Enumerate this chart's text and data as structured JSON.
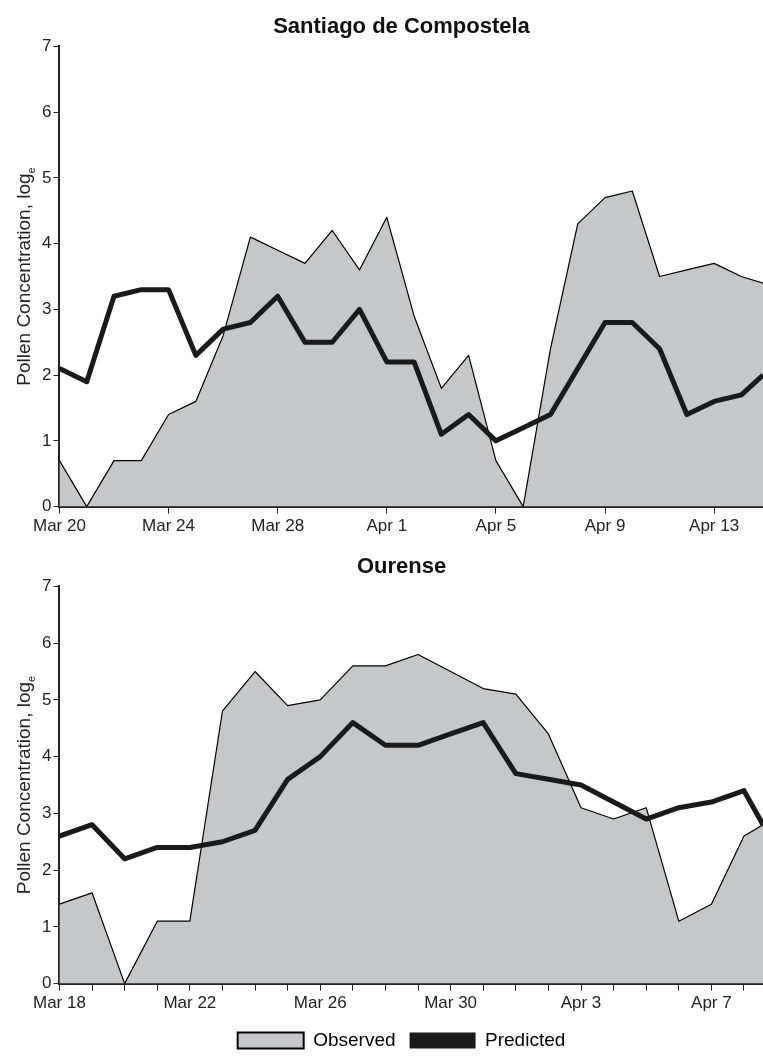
{
  "chart_data": [
    {
      "type": "area",
      "title": "Santiago de Compostela",
      "ylabel": "Pollen Concentration, log$_{e}$",
      "x": [
        "--03-20",
        "--03-21",
        "--03-22",
        "--03-23",
        "--03-24",
        "--03-25",
        "--03-26",
        "--03-27",
        "--03-28",
        "--03-29",
        "--03-30",
        "--03-31",
        "--04-01",
        "--04-02",
        "--04-03",
        "--04-04",
        "--04-05",
        "--04-06",
        "--04-07",
        "--04-08",
        "--04-09",
        "--04-10",
        "--04-11",
        "--04-12",
        "--04-13",
        "--04-14",
        "--04-14T19:00"
      ],
      "xlim": [
        "--03-20",
        "--04-14T19:00"
      ],
      "xticks": [
        {
          "value": "--03-20",
          "label": "Mar 20"
        },
        {
          "value": "--03-24",
          "label": "Mar 24"
        },
        {
          "value": "--03-28",
          "label": "Mar 28"
        },
        {
          "value": "--04-01",
          "label": "Apr 1"
        },
        {
          "value": "--04-05",
          "label": "Apr 5"
        },
        {
          "value": "--04-09",
          "label": "Apr 9"
        },
        {
          "value": "--04-13",
          "label": "Apr 13"
        }
      ],
      "ylim": [
        0,
        7
      ],
      "yticks": [
        0,
        1,
        2,
        3,
        4,
        5,
        6,
        7
      ],
      "grid": false,
      "legend": false,
      "marker": "none",
      "series": [
        {
          "type": "area",
          "color": "#c6c7c9",
          "values": [
            0.7,
            0,
            0.7,
            0.7,
            1.4,
            1.6,
            2.6,
            4.1,
            3.9,
            3.7,
            4.2,
            3.6,
            4.4,
            2.9,
            1.8,
            2.3,
            0.7,
            0,
            2.4,
            4.3,
            4.7,
            4.8,
            3.5,
            3.6,
            3.7,
            3.5,
            3.4
          ]
        },
        {
          "type": "line",
          "color": "#1a1a1a",
          "values": [
            2.1,
            1.9,
            3.2,
            3.3,
            3.3,
            2.3,
            2.7,
            2.8,
            3.2,
            2.5,
            2.5,
            3.0,
            2.2,
            2.2,
            1.1,
            1.4,
            1.0,
            1.2,
            1.4,
            2.1,
            2.8,
            2.8,
            2.4,
            1.4,
            1.6,
            1.7,
            2.0
          ]
        }
      ]
    },
    {
      "type": "area",
      "title": "Ourense",
      "ylabel": "Pollen Concentration, log$_{e}$",
      "x": [
        "--03-18",
        "--03-19",
        "--03-20",
        "--03-21",
        "--03-22",
        "--03-23",
        "--03-24",
        "--03-25",
        "--03-26",
        "--03-27",
        "--03-28",
        "--03-29",
        "--03-30",
        "--03-31",
        "--04-01",
        "--04-02",
        "--04-03",
        "--04-04",
        "--04-05",
        "--04-06",
        "--04-07",
        "--04-08",
        "--04-08T14:00"
      ],
      "xlim": [
        "--03-18",
        "--04-08T14:00"
      ],
      "xticks": [
        {
          "value": "--03-18",
          "label": "Mar 18"
        },
        {
          "value": "--03-19",
          "label": null
        },
        {
          "value": "--03-20",
          "label": null
        },
        {
          "value": "--03-21",
          "label": null
        },
        {
          "value": "--03-22",
          "label": "Mar 22"
        },
        {
          "value": "--03-23",
          "label": null
        },
        {
          "value": "--03-24",
          "label": null
        },
        {
          "value": "--03-25",
          "label": null
        },
        {
          "value": "--03-26",
          "label": "Mar 26"
        },
        {
          "value": "--03-27",
          "label": null
        },
        {
          "value": "--03-28",
          "label": null
        },
        {
          "value": "--03-29",
          "label": null
        },
        {
          "value": "--03-30",
          "label": "Mar 30"
        },
        {
          "value": "--03-31",
          "label": null
        },
        {
          "value": "--04-01",
          "label": null
        },
        {
          "value": "--04-02",
          "label": null
        },
        {
          "value": "--04-03",
          "label": "Apr 3"
        },
        {
          "value": "--04-04",
          "label": null
        },
        {
          "value": "--04-05",
          "label": null
        },
        {
          "value": "--04-06",
          "label": null
        },
        {
          "value": "--04-07",
          "label": "Apr 7"
        },
        {
          "value": "--04-08",
          "label": null
        }
      ],
      "ylim": [
        0,
        7
      ],
      "yticks": [
        0,
        1,
        2,
        3,
        4,
        5,
        6,
        7
      ],
      "grid": false,
      "legend": "bottom",
      "marker": "none",
      "series": [
        {
          "type": "area",
          "name": "Observed",
          "color": "#c6c7c9",
          "values": [
            1.4,
            1.6,
            0,
            1.1,
            1.1,
            4.8,
            5.5,
            4.9,
            5.0,
            5.6,
            5.6,
            5.8,
            5.5,
            5.2,
            5.1,
            4.4,
            3.1,
            2.9,
            3.1,
            1.1,
            1.4,
            2.6,
            2.8
          ]
        },
        {
          "type": "line",
          "name": "Predicted",
          "color": "#1a1a1a",
          "values": [
            2.6,
            2.8,
            2.2,
            2.4,
            2.4,
            2.5,
            2.7,
            3.6,
            4.0,
            4.6,
            4.2,
            4.2,
            4.4,
            4.6,
            3.7,
            3.6,
            3.5,
            3.2,
            2.9,
            3.1,
            3.2,
            3.4,
            2.8
          ]
        }
      ]
    }
  ]
}
